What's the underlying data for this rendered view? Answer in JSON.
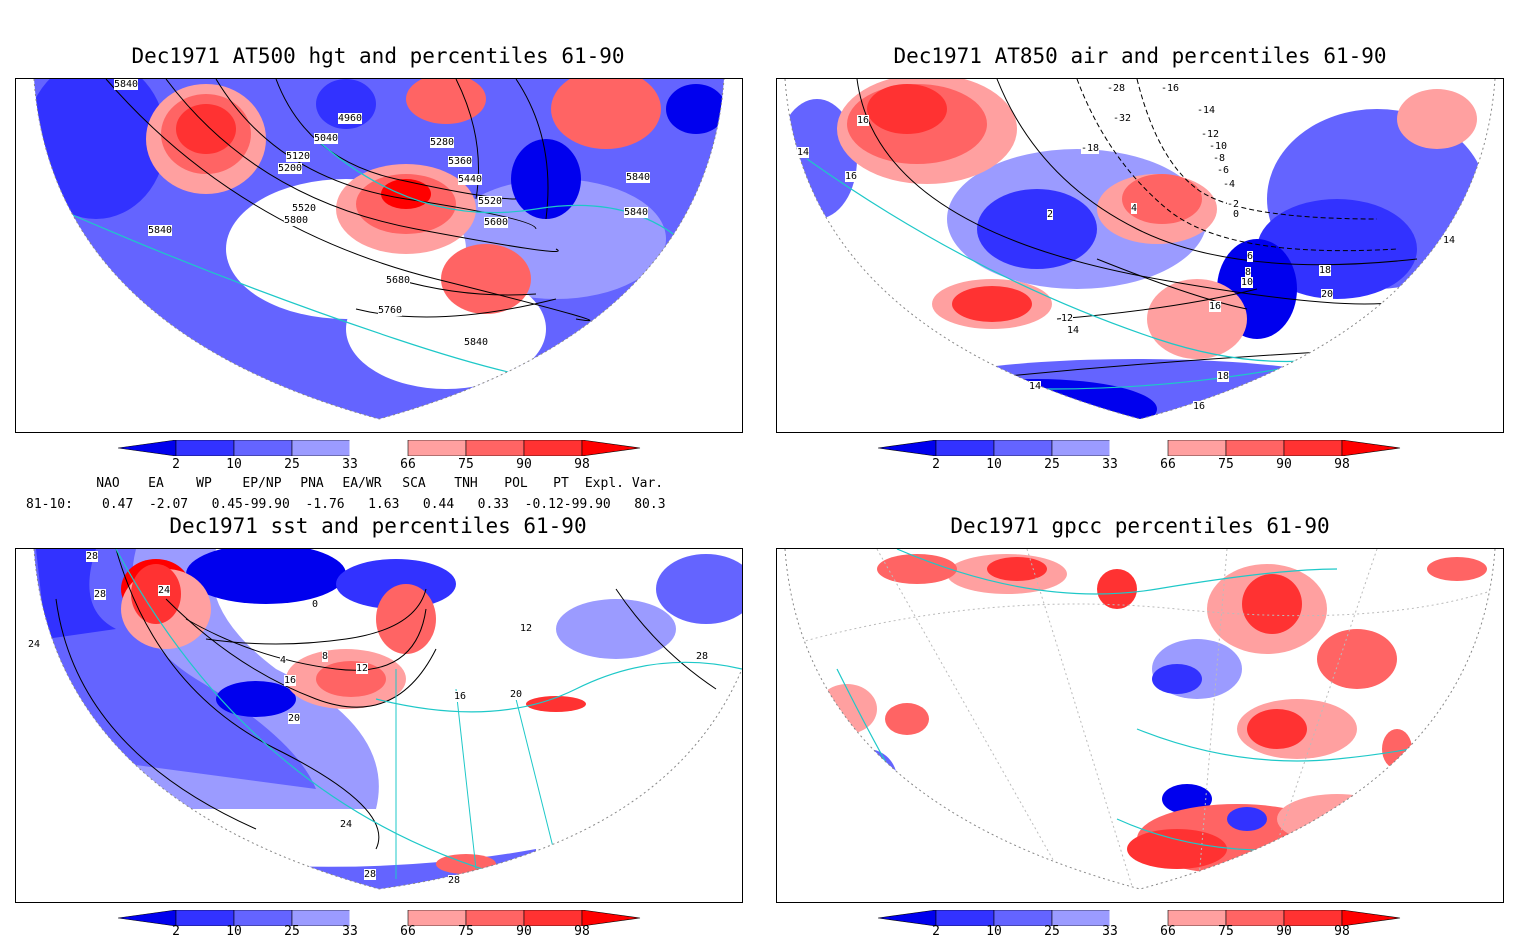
{
  "panels": [
    {
      "title": "Dec1971 AT500 hgt and percentiles 61-90",
      "contour_labels": [
        "5840",
        "4960",
        "5040",
        "5120",
        "5200",
        "5280",
        "5360",
        "5440",
        "5520",
        "5600",
        "5680",
        "5760",
        "5840",
        "5800",
        "5520",
        "5840",
        "5840",
        "5840"
      ]
    },
    {
      "title": "Dec1971 AT850 air and percentiles 61-90",
      "contour_labels": [
        "16",
        "14",
        "16",
        "-28",
        "-32",
        "-18",
        "-16",
        "-14",
        "-12",
        "-10",
        "-8",
        "-6",
        "-4",
        "-2",
        "0",
        "2",
        "4",
        "6",
        "8",
        "10",
        "12",
        "14",
        "16",
        "18",
        "20",
        "18",
        "16",
        "14",
        "14"
      ]
    },
    {
      "title": "Dec1971 sst and percentiles 61-90",
      "contour_labels": [
        "28",
        "28",
        "24",
        "24",
        "0",
        "4",
        "8",
        "12",
        "16",
        "20",
        "24",
        "28",
        "28",
        "16",
        "20",
        "12",
        "28"
      ]
    },
    {
      "title": "Dec1971 gpcc percentiles 61-90",
      "contour_labels": []
    }
  ],
  "colorbar": {
    "labels": [
      "2",
      "10",
      "25",
      "33",
      "66",
      "75",
      "90",
      "98"
    ],
    "colors": [
      "#0000ee",
      "#3232ff",
      "#6464ff",
      "#9b9bff",
      "#ffffff",
      "#ffa0a0",
      "#ff6464",
      "#ff3232",
      "#ff0000"
    ]
  },
  "indices": {
    "names": [
      "NAO",
      "EA",
      "WP",
      "EP/NP",
      "PNA",
      "EA/WR",
      "SCA",
      "TNH",
      "POL",
      "PT",
      "Expl. Var."
    ],
    "row_label": "81-10:",
    "values_text": "0.47  -2.07   0.45-99.90  -1.76   1.63   0.44   0.33  -0.12-99.90   80.3"
  }
}
